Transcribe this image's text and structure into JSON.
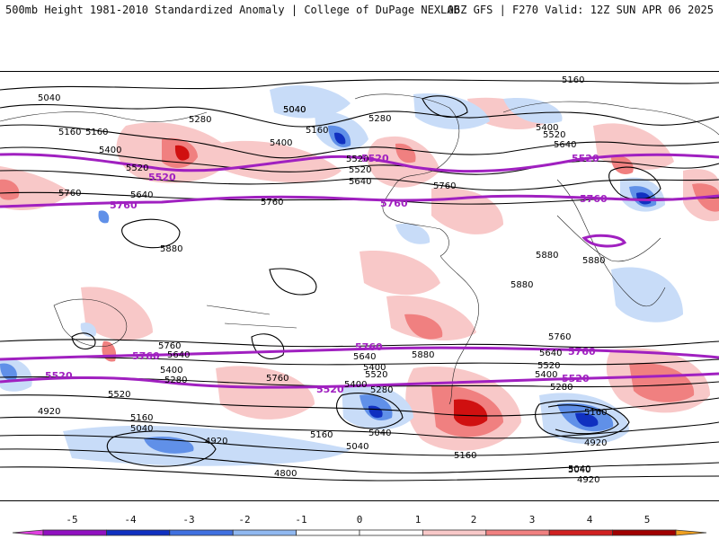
{
  "header": {
    "left_title": "500mb Height 1981-2010 Standardized Anomaly | College of DuPage NEXLAB",
    "right_title": "06Z GFS | F270 Valid: 12Z SUN APR 06 2025"
  },
  "colors": {
    "purple": "#a020c0",
    "contour": "#000000",
    "pos_light": "#f8c8c8",
    "pos_mid": "#f08080",
    "pos_strong": "#d01010",
    "neg_light": "#c8dcf8",
    "neg_mid": "#6090e8",
    "neg_strong": "#1030c0"
  },
  "colorbar": {
    "ticks": [
      "-5",
      "-4",
      "-3",
      "-2",
      "-1",
      "0",
      "1",
      "2",
      "3",
      "4",
      "5"
    ],
    "segments": [
      "#e040e0",
      "#9010c0",
      "#1030c0",
      "#4070e0",
      "#90b8f0",
      "#ffffff",
      "#ffffff",
      "#f8c8c8",
      "#f08080",
      "#d02020",
      "#a00000",
      "#f0a020"
    ]
  },
  "contour_labels": [
    "5160",
    "5040",
    "5040",
    "5160",
    "5280",
    "5400",
    "5520",
    "5640",
    "5760",
    "5760",
    "5880",
    "5040",
    "5160",
    "5400",
    "5520",
    "5640",
    "5760",
    "5280",
    "5400",
    "5520",
    "5640",
    "5520",
    "5160",
    "5880",
    "5880",
    "5880",
    "5880",
    "5760",
    "5640",
    "5760",
    "5640",
    "5520",
    "5400",
    "5400",
    "5280",
    "5520",
    "5160",
    "5040",
    "4920",
    "4920",
    "4800",
    "5160",
    "5040",
    "5040",
    "5160",
    "5040",
    "4920",
    "5280",
    "5400",
    "5520",
    "5640",
    "5760",
    "5400",
    "5280",
    "5160",
    "5040",
    "4920"
  ],
  "purple_labels": [
    "5520",
    "5760",
    "5520",
    "5760",
    "5520",
    "5760",
    "5760",
    "5520",
    "5760",
    "5520",
    "5520",
    "5760"
  ]
}
